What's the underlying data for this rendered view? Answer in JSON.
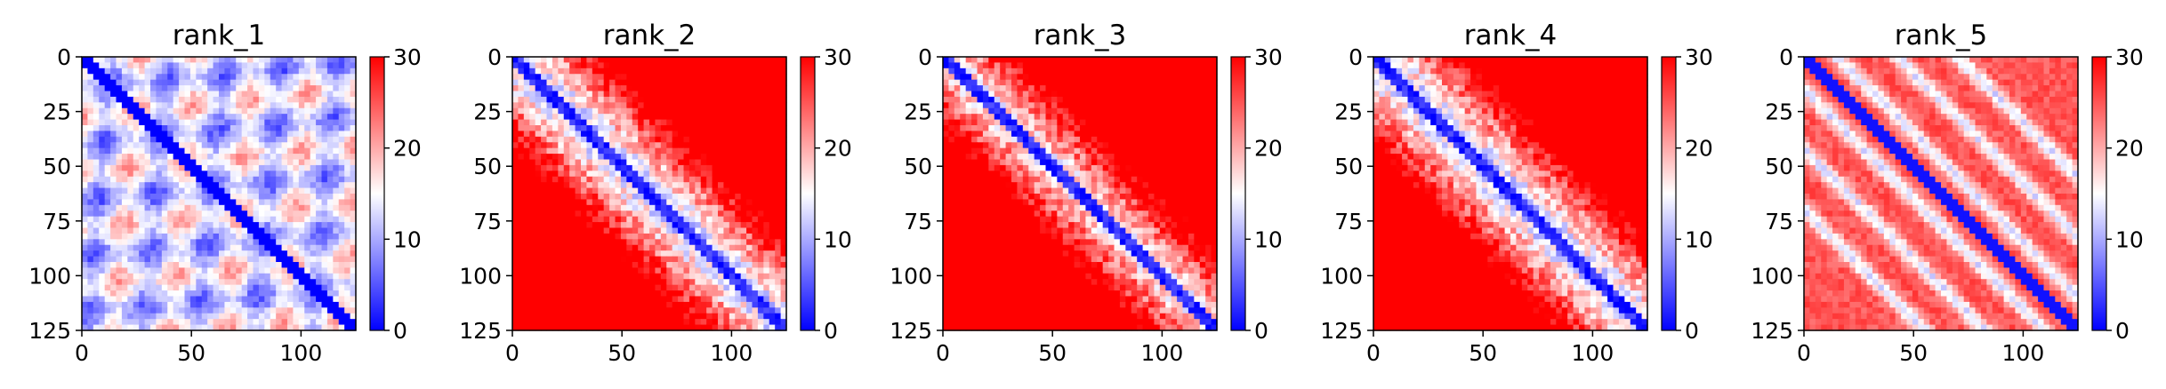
{
  "chart_data": [
    {
      "type": "heatmap",
      "title": "rank_1",
      "pattern": "checker",
      "x_ticks": [
        0,
        50,
        100
      ],
      "y_ticks": [
        0,
        25,
        50,
        75,
        100,
        125
      ],
      "xlim": [
        0,
        125
      ],
      "ylim": [
        125,
        0
      ],
      "colorbar": {
        "vmin": 0,
        "vmax": 30,
        "ticks": [
          0,
          10,
          20,
          30
        ],
        "colormap": "bwr"
      }
    },
    {
      "type": "heatmap",
      "title": "rank_2",
      "pattern": "band",
      "x_ticks": [
        0,
        50,
        100
      ],
      "y_ticks": [
        0,
        25,
        50,
        75,
        100,
        125
      ],
      "xlim": [
        0,
        125
      ],
      "ylim": [
        125,
        0
      ],
      "colorbar": {
        "vmin": 0,
        "vmax": 30,
        "ticks": [
          0,
          10,
          20,
          30
        ],
        "colormap": "bwr"
      }
    },
    {
      "type": "heatmap",
      "title": "rank_3",
      "pattern": "band",
      "x_ticks": [
        0,
        50,
        100
      ],
      "y_ticks": [
        0,
        25,
        50,
        75,
        100,
        125
      ],
      "xlim": [
        0,
        125
      ],
      "ylim": [
        125,
        0
      ],
      "colorbar": {
        "vmin": 0,
        "vmax": 30,
        "ticks": [
          0,
          10,
          20,
          30
        ],
        "colormap": "bwr"
      }
    },
    {
      "type": "heatmap",
      "title": "rank_4",
      "pattern": "band",
      "x_ticks": [
        0,
        50,
        100
      ],
      "y_ticks": [
        0,
        25,
        50,
        75,
        100,
        125
      ],
      "xlim": [
        0,
        125
      ],
      "ylim": [
        125,
        0
      ],
      "colorbar": {
        "vmin": 0,
        "vmax": 30,
        "ticks": [
          0,
          10,
          20,
          30
        ],
        "colormap": "bwr"
      }
    },
    {
      "type": "heatmap",
      "title": "rank_5",
      "pattern": "multi-band",
      "x_ticks": [
        0,
        50,
        100
      ],
      "y_ticks": [
        0,
        25,
        50,
        75,
        100,
        125
      ],
      "xlim": [
        0,
        125
      ],
      "ylim": [
        125,
        0
      ],
      "colorbar": {
        "vmin": 0,
        "vmax": 30,
        "ticks": [
          0,
          10,
          20,
          30
        ],
        "colormap": "bwr"
      }
    }
  ]
}
